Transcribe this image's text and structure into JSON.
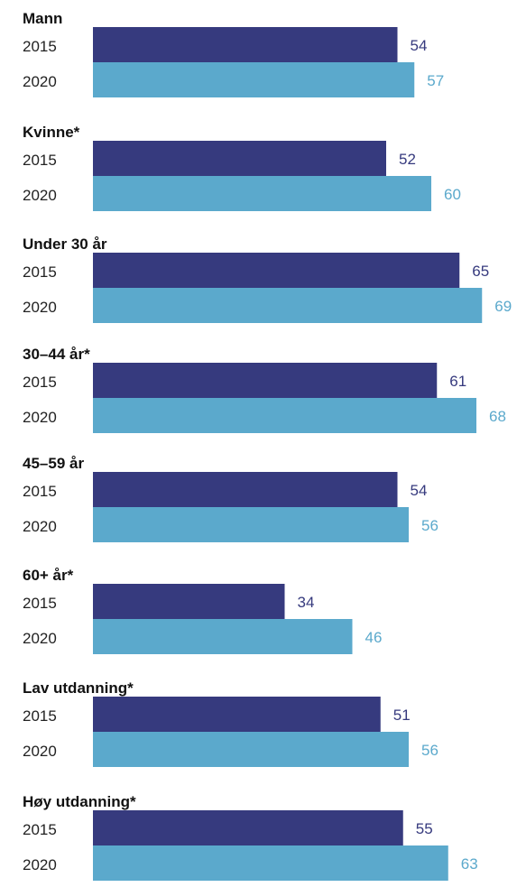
{
  "chart_data": {
    "type": "bar",
    "orientation": "horizontal",
    "series": [
      {
        "name": "2015",
        "color": "#363a7e"
      },
      {
        "name": "2020",
        "color": "#5ba9cc"
      }
    ],
    "groups": [
      {
        "label": "Mann",
        "values": [
          54,
          57
        ]
      },
      {
        "label": "Kvinne*",
        "values": [
          52,
          60
        ]
      },
      {
        "label": "Under 30 år",
        "values": [
          65,
          69
        ]
      },
      {
        "label": "30–44 år*",
        "values": [
          61,
          68
        ]
      },
      {
        "label": "45–59 år",
        "values": [
          54,
          56
        ]
      },
      {
        "label": "60+ år*",
        "values": [
          34,
          46
        ]
      },
      {
        "label": "Lav utdanning*",
        "values": [
          51,
          56
        ]
      },
      {
        "label": "Høy utdanning*",
        "values": [
          55,
          63
        ]
      }
    ],
    "xlim": [
      0,
      70
    ],
    "grid": false,
    "legend": "none",
    "show_values": true
  }
}
